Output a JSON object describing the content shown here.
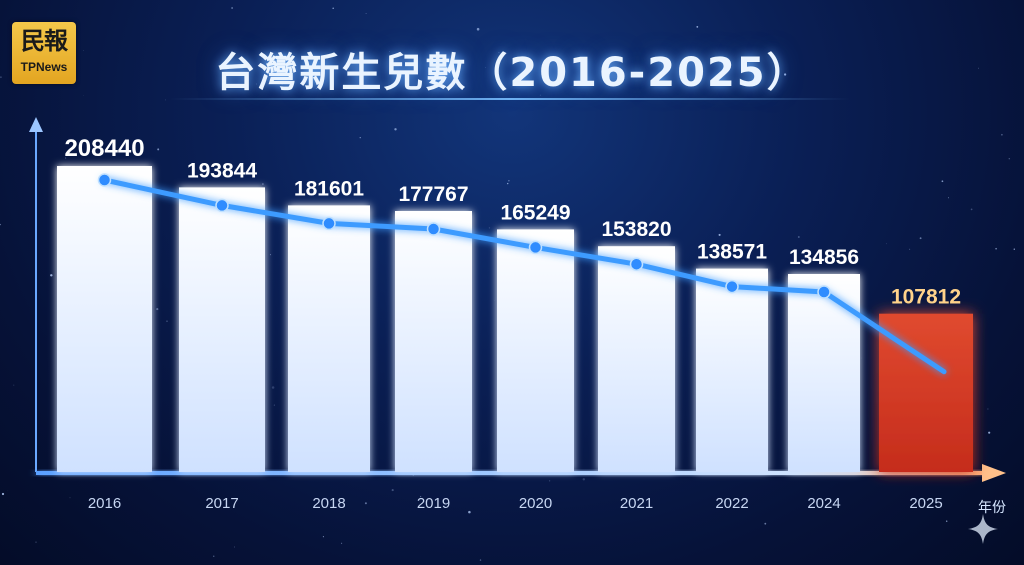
{
  "logo": {
    "line1": "民報",
    "line2": "TPNews"
  },
  "title": "台灣新生兒數（2016-2025）",
  "chart_data": {
    "type": "bar",
    "categories": [
      "2016",
      "2017",
      "2018",
      "2019",
      "2020",
      "2021",
      "2022",
      "2024",
      "2025"
    ],
    "values": [
      208440,
      193844,
      181601,
      177767,
      165249,
      153820,
      138571,
      134856,
      107812
    ],
    "data_labels": [
      "208440",
      "193844",
      "181601",
      "177767",
      "165249",
      "153820",
      "138571",
      "134856",
      "107812"
    ],
    "overlay_line": true,
    "highlight_category": "2025",
    "xlabel": "年份",
    "ylabel": "",
    "ylim": [
      0,
      210000
    ],
    "grid": false,
    "legend": "none"
  },
  "colors": {
    "bar": "#eef5ff",
    "bar_highlight": "#d93a25",
    "line": "#3d9bff",
    "label": "#ffffff",
    "label_highlight": "#ffd28a",
    "axis": "#6aa8ff"
  },
  "icons": {
    "sparkle": "sparkle-icon",
    "y_arrow": "arrow-up-icon",
    "x_arrow": "arrow-right-icon"
  }
}
